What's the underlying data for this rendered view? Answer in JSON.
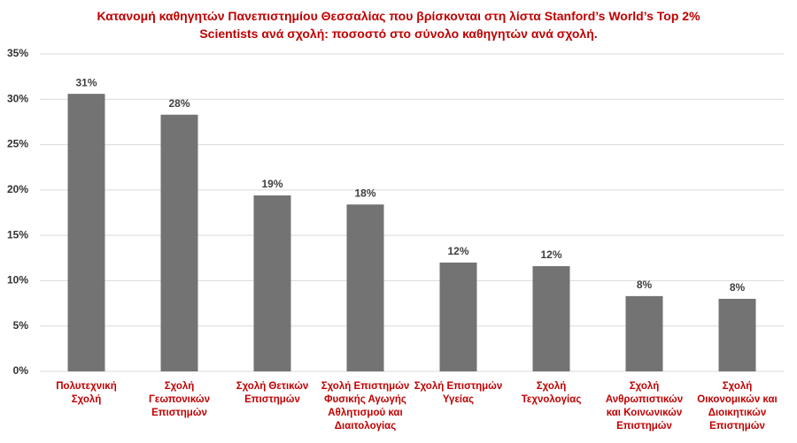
{
  "chart_data": {
    "type": "bar",
    "title": "Κατανομή καθηγητών Πανεπιστημίου Θεσσαλίας που βρίσκονται στη λίστα Stanford’s World’s Top 2% Scientists ανά σχολή: ποσοστό στο σύνολο καθηγητών ανά σχολή.",
    "categories": [
      "Πολυτεχνική Σχολή",
      "Σχολή Γεωπονικών Επιστημών",
      "Σχολή Θετικών Επιστημών",
      "Σχολή Επιστημών Φυσικής Αγωγής Αθλητισμού και Διαιτολογίας",
      "Σχολή Επιστημών Υγείας",
      "Σχολή Τεχνολογίας",
      "Σχολή Ανθρωπιστικών και Κοινωνικών Επιστημών",
      "Σχολή Οικονομικών και Διοικητικών Επιστημών"
    ],
    "values": [
      30.6,
      28.3,
      19.4,
      18.4,
      12.0,
      11.6,
      8.3,
      8.0
    ],
    "value_labels": [
      "31%",
      "28%",
      "19%",
      "18%",
      "12%",
      "12%",
      "8%",
      "8%"
    ],
    "color": "#737373",
    "ylim": [
      0,
      35
    ],
    "yticks": [
      {
        "value": 0,
        "label": "0%"
      },
      {
        "value": 5,
        "label": "5%"
      },
      {
        "value": 10,
        "label": "10%"
      },
      {
        "value": 15,
        "label": "15%"
      },
      {
        "value": 20,
        "label": "20%"
      },
      {
        "value": 25,
        "label": "25%"
      },
      {
        "value": 30,
        "label": "30%"
      },
      {
        "value": 35,
        "label": "35%"
      }
    ],
    "grid": true
  }
}
